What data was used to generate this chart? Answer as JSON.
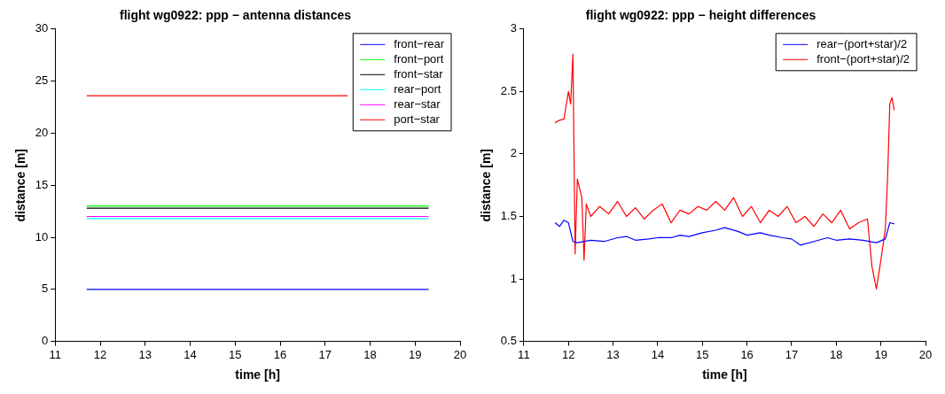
{
  "chart_data": [
    {
      "type": "line",
      "title": "flight wg0922: ppp − antenna distances",
      "xlabel": "time [h]",
      "ylabel": "distance [m]",
      "xlim": [
        11,
        20
      ],
      "xticks": [
        11,
        12,
        13,
        14,
        15,
        16,
        17,
        18,
        19,
        20
      ],
      "ylim": [
        0,
        30
      ],
      "yticks": [
        0,
        5,
        10,
        15,
        20,
        25,
        30
      ],
      "grid": false,
      "legend": "top right",
      "marker": "none",
      "line_style": "solid",
      "series": [
        {
          "name": "front−rear",
          "color": "#0000ff",
          "x": [
            11.7,
            13.5,
            15.5,
            17.5,
            19.3
          ],
          "values": [
            5.0,
            5.0,
            5.0,
            5.0,
            5.0
          ]
        },
        {
          "name": "front−port",
          "color": "#00ff00",
          "x": [
            11.7,
            13.5,
            15.5,
            17.5,
            19.3
          ],
          "values": [
            13.0,
            13.0,
            13.0,
            13.0,
            13.0
          ]
        },
        {
          "name": "front−star",
          "color": "#000000",
          "x": [
            11.7,
            13.5,
            15.5,
            17.5,
            19.3
          ],
          "values": [
            12.8,
            12.8,
            12.8,
            12.8,
            12.8
          ]
        },
        {
          "name": "rear−port",
          "color": "#00ffff",
          "x": [
            11.7,
            13.5,
            15.5,
            17.5,
            19.3
          ],
          "values": [
            11.8,
            11.8,
            11.8,
            11.8,
            11.8
          ]
        },
        {
          "name": "rear−star",
          "color": "#ff00ff",
          "x": [
            11.7,
            13.5,
            15.5,
            17.5,
            19.3
          ],
          "values": [
            12.0,
            12.0,
            12.0,
            12.0,
            12.0
          ]
        },
        {
          "name": "port−star",
          "color": "#ff0000",
          "x": [
            11.7,
            13.5,
            15.5,
            17.5
          ],
          "values": [
            23.6,
            23.6,
            23.6,
            23.6
          ]
        }
      ]
    },
    {
      "type": "line",
      "title": "flight wg0922: ppp − height differences",
      "xlabel": "time [h]",
      "ylabel": "distance [m]",
      "xlim": [
        11,
        20
      ],
      "xticks": [
        11,
        12,
        13,
        14,
        15,
        16,
        17,
        18,
        19,
        20
      ],
      "ylim": [
        0.5,
        3
      ],
      "yticks": [
        0.5,
        1,
        1.5,
        2,
        2.5,
        3
      ],
      "grid": false,
      "legend": "top right",
      "marker": "none",
      "line_style": "solid",
      "series": [
        {
          "name": "rear−(port+star)/2",
          "color": "#0000ff",
          "x": [
            11.7,
            11.8,
            11.9,
            12.0,
            12.1,
            12.2,
            12.5,
            12.8,
            13.1,
            13.3,
            13.5,
            13.8,
            14.0,
            14.3,
            14.5,
            14.7,
            15.0,
            15.3,
            15.5,
            15.8,
            16.0,
            16.3,
            16.5,
            16.8,
            17.0,
            17.2,
            17.5,
            17.8,
            18.0,
            18.3,
            18.6,
            18.9,
            19.1,
            19.2,
            19.3
          ],
          "values": [
            1.45,
            1.42,
            1.47,
            1.45,
            1.3,
            1.29,
            1.31,
            1.3,
            1.33,
            1.34,
            1.31,
            1.32,
            1.33,
            1.33,
            1.35,
            1.34,
            1.37,
            1.39,
            1.41,
            1.38,
            1.35,
            1.37,
            1.35,
            1.33,
            1.32,
            1.27,
            1.3,
            1.33,
            1.31,
            1.32,
            1.31,
            1.29,
            1.32,
            1.45,
            1.44
          ]
        },
        {
          "name": "front−(port+star)/2",
          "color": "#ff0000",
          "x": [
            11.7,
            11.8,
            11.9,
            12.0,
            12.05,
            12.1,
            12.15,
            12.2,
            12.3,
            12.35,
            12.4,
            12.5,
            12.7,
            12.9,
            13.1,
            13.3,
            13.5,
            13.7,
            13.9,
            14.1,
            14.3,
            14.5,
            14.7,
            14.9,
            15.1,
            15.3,
            15.5,
            15.7,
            15.9,
            16.1,
            16.3,
            16.5,
            16.7,
            16.9,
            17.1,
            17.3,
            17.5,
            17.7,
            17.9,
            18.1,
            18.3,
            18.5,
            18.7,
            18.8,
            18.9,
            19.0,
            19.1,
            19.15,
            19.2,
            19.25,
            19.3
          ],
          "values": [
            2.25,
            2.27,
            2.28,
            2.5,
            2.4,
            2.8,
            1.2,
            1.8,
            1.65,
            1.15,
            1.6,
            1.5,
            1.58,
            1.52,
            1.62,
            1.5,
            1.57,
            1.48,
            1.55,
            1.6,
            1.45,
            1.55,
            1.52,
            1.58,
            1.55,
            1.62,
            1.55,
            1.65,
            1.5,
            1.58,
            1.45,
            1.55,
            1.5,
            1.58,
            1.45,
            1.5,
            1.42,
            1.52,
            1.45,
            1.55,
            1.4,
            1.45,
            1.48,
            1.1,
            0.92,
            1.15,
            1.4,
            1.8,
            2.4,
            2.45,
            2.35
          ]
        }
      ]
    }
  ]
}
